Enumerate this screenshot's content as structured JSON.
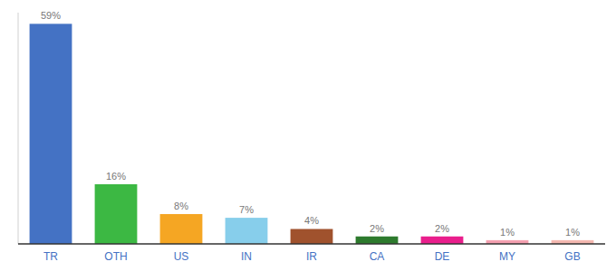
{
  "chart_data": {
    "type": "bar",
    "categories": [
      "TR",
      "OTH",
      "US",
      "IN",
      "IR",
      "CA",
      "DE",
      "MY",
      "GB"
    ],
    "values": [
      59,
      16,
      8,
      7,
      4,
      2,
      2,
      1,
      1
    ],
    "value_labels": [
      "59%",
      "16%",
      "8%",
      "7%",
      "4%",
      "2%",
      "2%",
      "1%",
      "1%"
    ],
    "colors": [
      "#4472c4",
      "#3cb843",
      "#f5a623",
      "#87ceeb",
      "#a0522d",
      "#2d7a2d",
      "#e91e8c",
      "#f4a0b0",
      "#f4b8b0"
    ],
    "ylim": [
      0,
      62
    ],
    "grid": false,
    "data_labels": true,
    "tick_labels": "x"
  }
}
